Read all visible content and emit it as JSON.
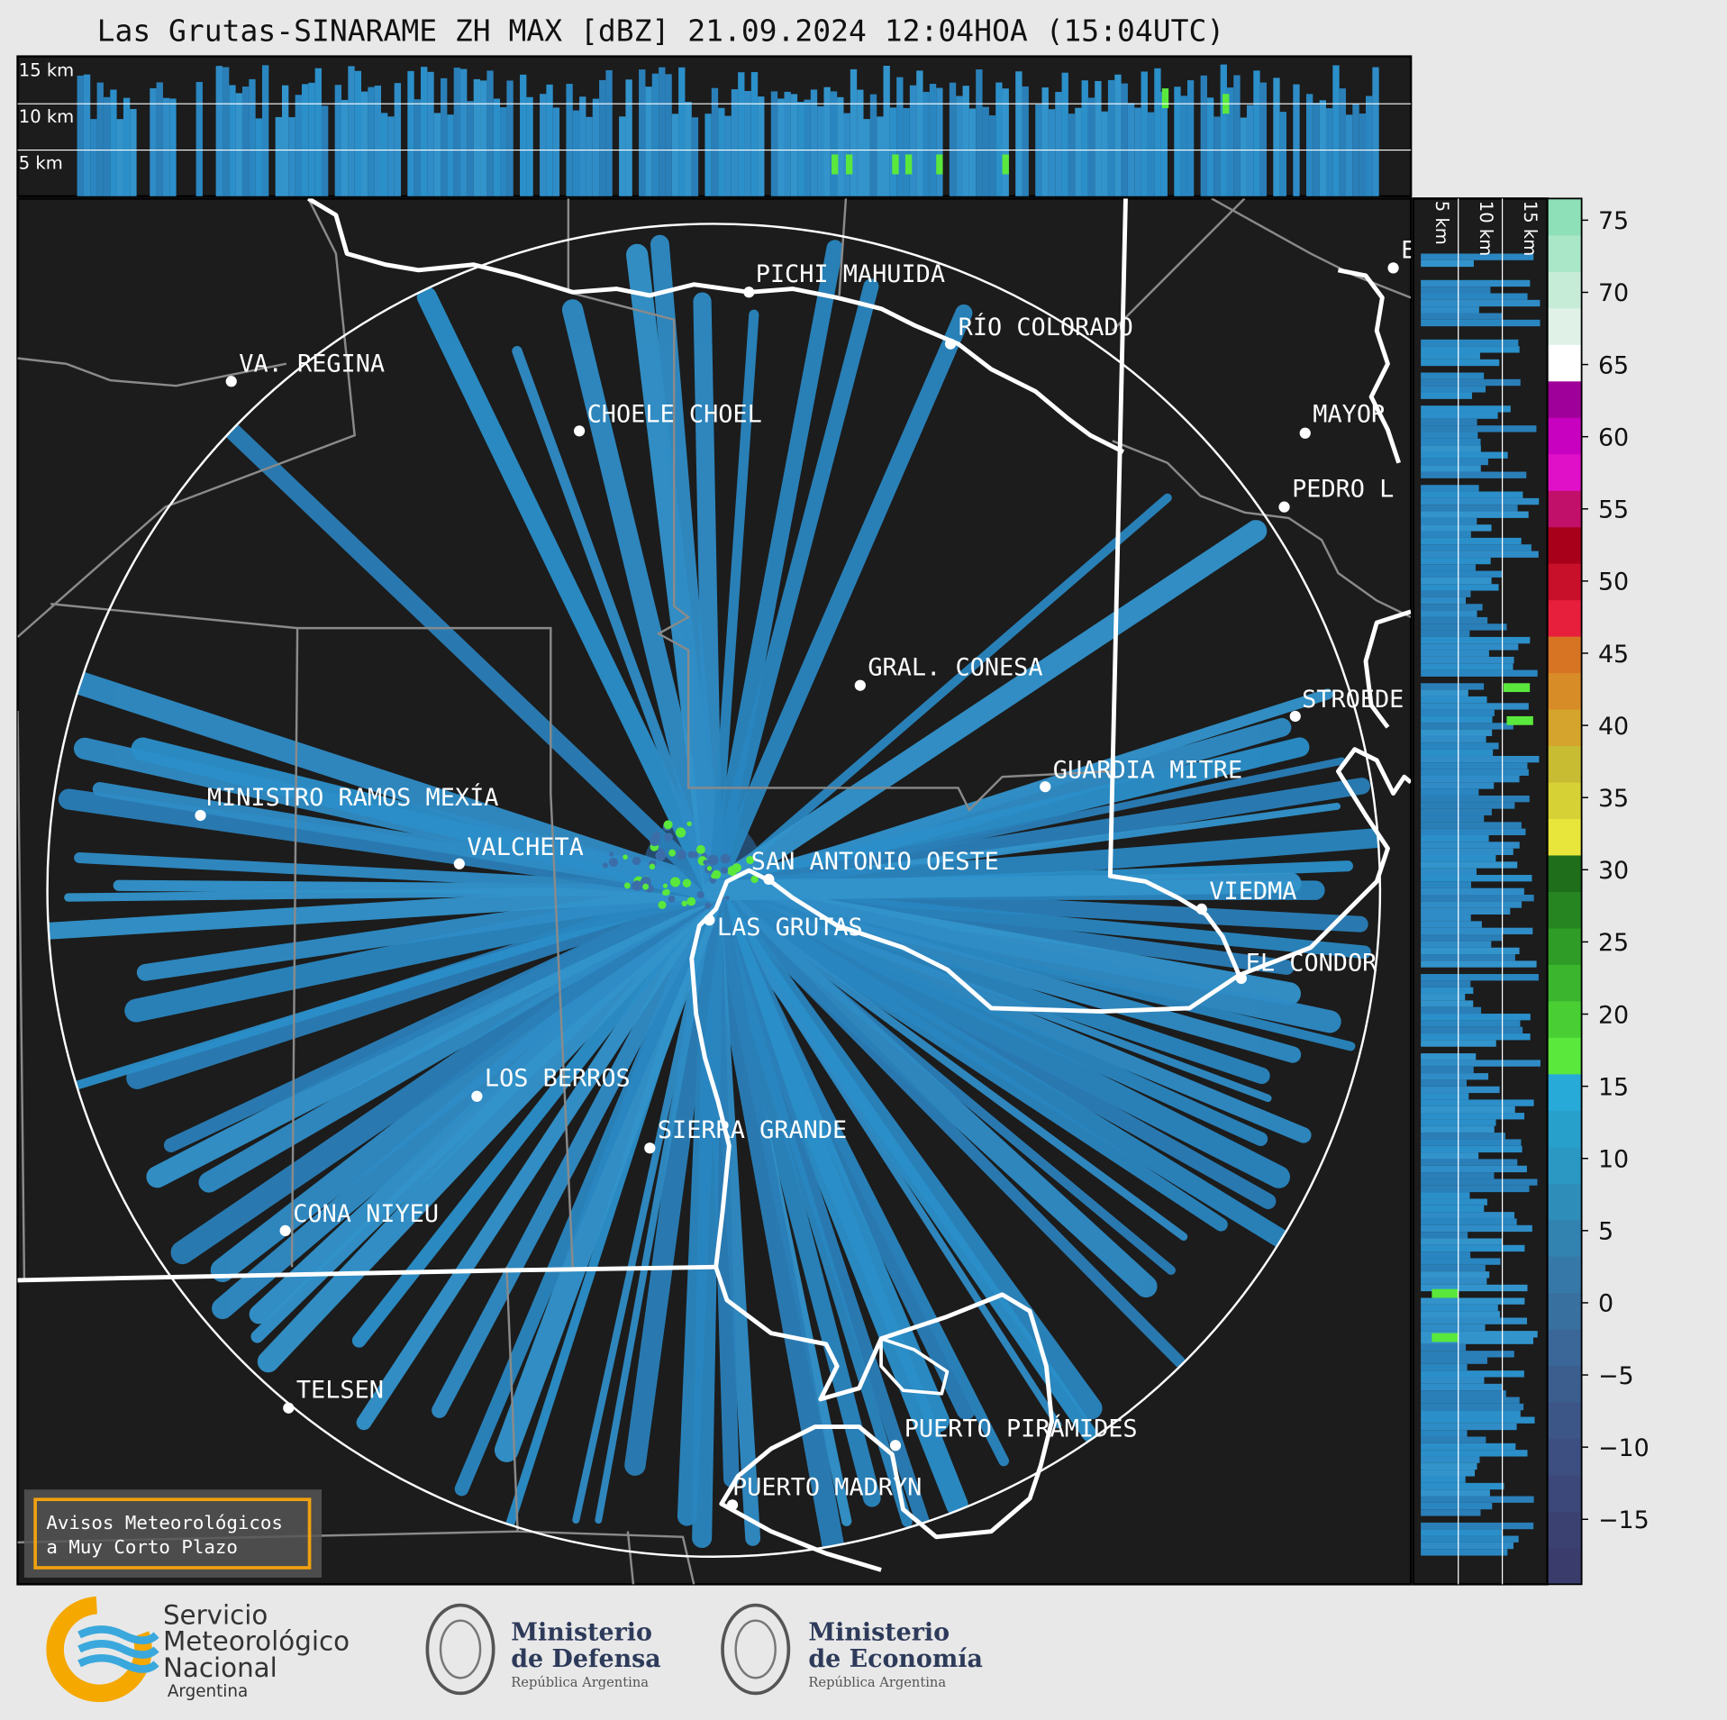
{
  "title": "Las Grutas-SINARAME ZH MAX [dBZ] 21.09.2024 12:04HOA (15:04UTC)",
  "top_panel": {
    "height_labels": [
      "15 km",
      "10 km",
      "5 km"
    ]
  },
  "side_panel": {
    "height_labels": [
      "5 km",
      "10 km",
      "15 km"
    ]
  },
  "map": {
    "cities": [
      {
        "label": "PICHI MAHUIDA"
      },
      {
        "label": "RÍO COLORADO"
      },
      {
        "label": "VA. REGINA"
      },
      {
        "label": "CHOELE CHOEL"
      },
      {
        "label": "MAYOR"
      },
      {
        "label": "PEDRO L"
      },
      {
        "label": "E"
      },
      {
        "label": "GRAL. CONESA"
      },
      {
        "label": "STROEDE"
      },
      {
        "label": "GUARDIA MITRE"
      },
      {
        "label": "MINISTRO RAMOS MEXÍA"
      },
      {
        "label": "VALCHETA"
      },
      {
        "label": "SAN ANTONIO OESTE"
      },
      {
        "label": "VIEDMA"
      },
      {
        "label": "LAS GRUTAS"
      },
      {
        "label": "EL CONDOR"
      },
      {
        "label": "LOS BERROS"
      },
      {
        "label": "SIERRA GRANDE"
      },
      {
        "label": "CONA NIYEU"
      },
      {
        "label": "TELSEN"
      },
      {
        "label": "PUERTO PIRÁMIDES"
      },
      {
        "label": "PUERTO MADRYN"
      }
    ]
  },
  "colorbar": {
    "lim": [
      -19.5,
      76.5
    ],
    "ticks": [
      {
        "value": -15,
        "label": "−15"
      },
      {
        "value": -10,
        "label": "−10"
      },
      {
        "value": -5,
        "label": "−5"
      },
      0,
      5,
      10,
      15,
      20,
      25,
      30,
      35,
      40,
      45,
      50,
      55,
      60,
      65,
      70,
      75
    ],
    "colors": [
      "#3a3d6c",
      "#3b4272",
      "#3c4879",
      "#3c4f80",
      "#3c5687",
      "#3b5e8f",
      "#3a6797",
      "#38709f",
      "#3679a8",
      "#3383b1",
      "#2f8dba",
      "#2b97c3",
      "#28a0cc",
      "#27aad8",
      "#5ae83c",
      "#49cf34",
      "#3cb52e",
      "#2f9c27",
      "#268521",
      "#1e6e1c",
      "#e8e63a",
      "#d6d236",
      "#c8bc33",
      "#d4a42c",
      "#d88c28",
      "#d67424",
      "#e81f3c",
      "#c8102a",
      "#a8001a",
      "#c0106a",
      "#e010c8",
      "#c800c0",
      "#a0009a",
      "#ffffff",
      "#e0f2e8",
      "#c6ecd8",
      "#aae6c8",
      "#8ee0b8"
    ]
  },
  "notice": {
    "lines": [
      "Avisos Meteorológicos",
      "a Muy Corto Plazo"
    ]
  },
  "logos": {
    "smn": [
      "Servicio",
      "Meteorológico",
      "Nacional",
      "Argentina"
    ],
    "defensa": [
      "Ministerio",
      "de Defensa",
      "República Argentina"
    ],
    "economia": [
      "Ministerio",
      "de Economía",
      "República Argentina"
    ]
  }
}
